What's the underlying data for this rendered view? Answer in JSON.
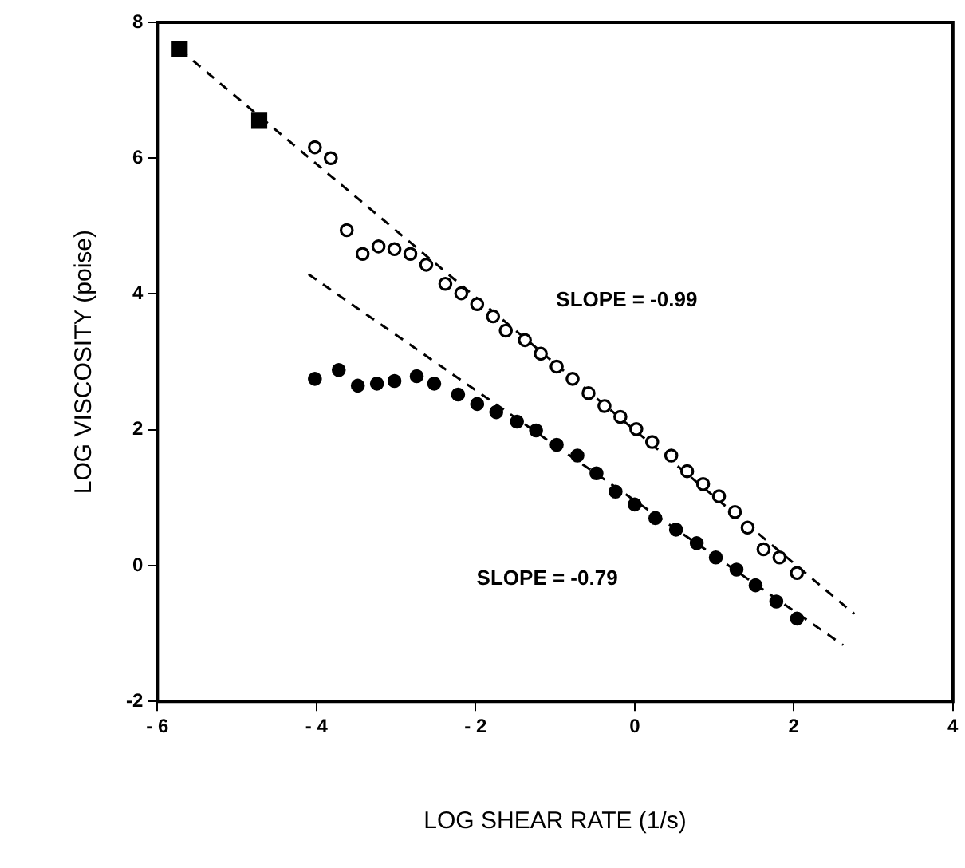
{
  "chart_data": {
    "type": "scatter",
    "xlabel": "LOG SHEAR RATE (1/s)",
    "ylabel": "LOG VISCOSITY (poise)",
    "xlim": [
      -6,
      4
    ],
    "xticks": [
      {
        "value": -6,
        "label": "- 6"
      },
      {
        "value": -4,
        "label": "- 4"
      },
      {
        "value": -2,
        "label": "- 2"
      },
      0,
      2,
      4
    ],
    "ylim": [
      -2,
      8
    ],
    "yticks": [
      -2,
      0,
      2,
      4,
      6,
      8
    ],
    "grid": false,
    "legend": false,
    "series": [
      {
        "marker": "square",
        "color": "#000000",
        "x": [
          -5.72,
          -4.72
        ],
        "values": [
          7.61,
          6.55
        ]
      },
      {
        "marker": "circle",
        "color": "#ffffff",
        "x": [
          -4.02,
          -3.82,
          -3.62,
          -3.42,
          -3.22,
          -3.02,
          -2.82,
          -2.62,
          -2.38,
          -2.18,
          -1.98,
          -1.78,
          -1.62,
          -1.38,
          -1.18,
          -0.98,
          -0.78,
          -0.58,
          -0.38,
          -0.18,
          0.02,
          0.22,
          0.46,
          0.66,
          0.86,
          1.06,
          1.26,
          1.42,
          1.62,
          1.82,
          2.04
        ],
        "values": [
          6.16,
          6.0,
          4.94,
          4.59,
          4.7,
          4.66,
          4.59,
          4.43,
          4.15,
          4.01,
          3.85,
          3.67,
          3.46,
          3.32,
          3.12,
          2.93,
          2.75,
          2.54,
          2.35,
          2.19,
          2.01,
          1.82,
          1.62,
          1.39,
          1.2,
          1.02,
          0.79,
          0.56,
          0.24,
          0.12,
          -0.11
        ]
      },
      {
        "marker": "circle",
        "color": "#000000",
        "x": [
          -4.02,
          -3.72,
          -3.48,
          -3.24,
          -3.02,
          -2.74,
          -2.52,
          -2.22,
          -1.98,
          -1.74,
          -1.48,
          -1.24,
          -0.98,
          -0.72,
          -0.48,
          -0.24,
          0.0,
          0.26,
          0.52,
          0.78,
          1.02,
          1.28,
          1.52,
          1.78,
          2.04
        ],
        "values": [
          2.75,
          2.88,
          2.65,
          2.68,
          2.72,
          2.79,
          2.68,
          2.52,
          2.38,
          2.26,
          2.12,
          1.99,
          1.78,
          1.62,
          1.36,
          1.09,
          0.9,
          0.7,
          0.53,
          0.33,
          0.12,
          -0.06,
          -0.29,
          -0.53,
          -0.78
        ]
      },
      {
        "type": "line",
        "marker": "none",
        "line_style": "dashed",
        "color": "#000000",
        "x": [
          -5.72,
          2.76
        ],
        "values": [
          7.6,
          -0.71
        ]
      },
      {
        "type": "line",
        "marker": "none",
        "line_style": "dashed",
        "color": "#000000",
        "x": [
          -4.1,
          2.62
        ],
        "values": [
          4.29,
          -1.17
        ]
      }
    ],
    "annotations": [
      "SLOPE = -0.99",
      "SLOPE = -0.79"
    ]
  }
}
